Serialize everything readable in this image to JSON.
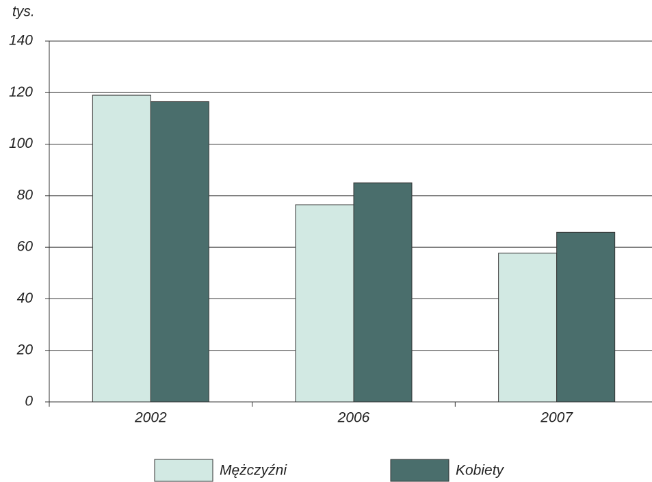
{
  "chart_data": {
    "type": "bar",
    "y_label": "tys.",
    "categories": [
      "2002",
      "2006",
      "2007"
    ],
    "series": [
      {
        "name": "Mężczyźni",
        "color": "#d2e9e3",
        "values": [
          119,
          76.5,
          57.7
        ]
      },
      {
        "name": "Kobiety",
        "color": "#4a6e6c",
        "values": [
          116.5,
          85,
          65.8
        ]
      }
    ],
    "ylim": [
      0,
      140
    ],
    "yticks": [
      0,
      20,
      40,
      60,
      80,
      100,
      120,
      140
    ],
    "grid": true,
    "legend": "bottom"
  }
}
